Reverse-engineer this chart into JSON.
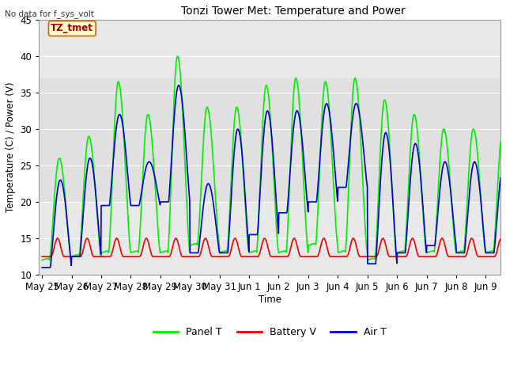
{
  "title": "Tonzi Tower Met: Temperature and Power",
  "ylabel": "Temperature (C) / Power (V)",
  "xlabel": "Time",
  "no_data_text": "No data for f_sys_volt",
  "legend_box_label": "TZ_tmet",
  "ylim": [
    10,
    45
  ],
  "background_color": "#ffffff",
  "plot_bg_color": "#e8e8e8",
  "shaded_ymin": 37,
  "shaded_ymax": 45,
  "shaded_ymin2": 10,
  "shaded_ymax2": 20,
  "shaded_color": "#d4d4d4",
  "grid_color": "#ffffff",
  "legend_labels": [
    "Panel T",
    "Battery V",
    "Air T"
  ],
  "legend_colors": [
    "#00ee00",
    "#ee0000",
    "#0000cc"
  ],
  "line_width": 1.2,
  "x_tick_labels": [
    "May 25",
    "May 26",
    "May 27",
    "May 28",
    "May 29",
    "May 30",
    "May 31",
    "Jun 1",
    "Jun 2",
    "Jun 3",
    "Jun 4",
    "Jun 5",
    "Jun 6",
    "Jun 7",
    "Jun 8",
    "Jun 9"
  ],
  "x_tick_positions": [
    0,
    1,
    2,
    3,
    4,
    5,
    6,
    7,
    8,
    9,
    10,
    11,
    12,
    13,
    14,
    15
  ],
  "panel_peaks": [
    26,
    29,
    36.5,
    32,
    40,
    33,
    33,
    36,
    37,
    36.5,
    37,
    34,
    32,
    30,
    30
  ],
  "panel_troughs": [
    12,
    12.5,
    13,
    13,
    13,
    14,
    13,
    13,
    13,
    14,
    13,
    12,
    13,
    13,
    13
  ],
  "air_peaks": [
    23,
    26,
    32,
    25.5,
    36,
    22.5,
    30,
    32.5,
    32.5,
    33.5,
    33.5,
    29.5,
    28,
    25.5,
    25.5
  ],
  "air_troughs": [
    11,
    12.5,
    19.5,
    19.5,
    20,
    13,
    13,
    15.5,
    18.5,
    20,
    22,
    11.5,
    13,
    14,
    13,
    13
  ],
  "bv_base": 12.5,
  "bv_peak": 15.0,
  "figsize": [
    6.4,
    4.8
  ],
  "dpi": 100
}
